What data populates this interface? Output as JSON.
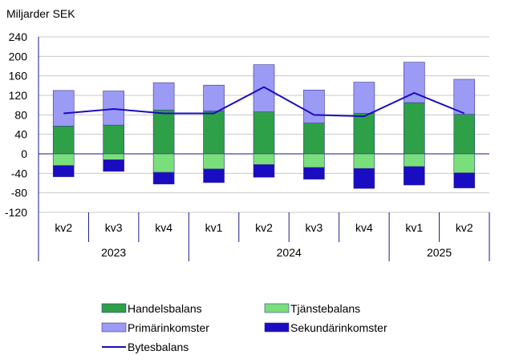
{
  "chart_data": {
    "type": "bar",
    "stacked": true,
    "unit_label": "Miljarder SEK",
    "ylim": [
      -120,
      240
    ],
    "yticks": [
      240,
      200,
      160,
      120,
      80,
      40,
      0,
      -40,
      -80,
      -120
    ],
    "grid": true,
    "legend_position": "bottom",
    "categories": [
      "kv2",
      "kv3",
      "kv4",
      "kv1",
      "kv2",
      "kv3",
      "kv4",
      "kv1",
      "kv2"
    ],
    "years": [
      {
        "label": "2023",
        "start": 0,
        "end": 2
      },
      {
        "label": "2024",
        "start": 3,
        "end": 6
      },
      {
        "label": "2025",
        "start": 7,
        "end": 8
      }
    ],
    "series": [
      {
        "name": "Handelsbalans",
        "color": "#2ea047",
        "values": [
          57,
          59,
          90,
          88,
          86,
          63,
          83,
          105,
          81
        ]
      },
      {
        "name": "Tjänstebalans",
        "color": "#79df7a",
        "values": [
          -24,
          -12,
          -38,
          -31,
          -22,
          -28,
          -30,
          -26,
          -39
        ]
      },
      {
        "name": "Primärinkomster",
        "color": "#9b9af5",
        "values": [
          73,
          70,
          56,
          53,
          97,
          68,
          64,
          83,
          72
        ]
      },
      {
        "name": "Sekundärinkomster",
        "color": "#1a0cc0",
        "values": [
          -23,
          -24,
          -24,
          -28,
          -26,
          -24,
          -41,
          -38,
          -31
        ]
      }
    ],
    "line": {
      "name": "Bytesbalans",
      "color": "#1a0cc0",
      "values": [
        83,
        92,
        83,
        83,
        137,
        80,
        77,
        125,
        83
      ]
    }
  }
}
